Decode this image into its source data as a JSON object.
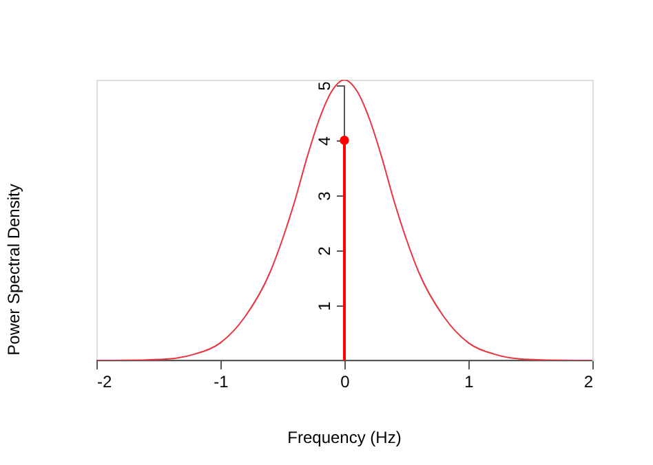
{
  "chart_data": {
    "type": "line",
    "xlabel": "Frequency (Hz)",
    "ylabel": "Power Spectral Density",
    "xlim": [
      -2,
      2
    ],
    "xticks": [
      -2,
      -1,
      0,
      1,
      2
    ],
    "ylim": [
      0,
      5.1
    ],
    "yticks": [
      1,
      2,
      3,
      4,
      5
    ],
    "grid": false,
    "series": [
      {
        "color": "#e8333f",
        "x": [
          -2,
          -1.6,
          -1.4,
          -1.2,
          -1.0,
          -0.8,
          -0.6,
          -0.5,
          -0.4,
          -0.3,
          -0.2,
          -0.1,
          0,
          0.1,
          0.2,
          0.3,
          0.4,
          0.5,
          0.6,
          0.8,
          1.0,
          1.2,
          1.4,
          1.6,
          2
        ],
        "values": [
          0,
          0.01,
          0.03,
          0.12,
          0.32,
          0.8,
          1.6,
          2.2,
          2.9,
          3.7,
          4.4,
          4.9,
          5.1,
          4.9,
          4.4,
          3.7,
          2.9,
          2.2,
          1.6,
          0.8,
          0.32,
          0.12,
          0.03,
          0.01,
          0
        ]
      },
      {
        "type": "lollipop",
        "color": "#ff0000",
        "x": [
          0
        ],
        "values": [
          4
        ]
      }
    ]
  }
}
